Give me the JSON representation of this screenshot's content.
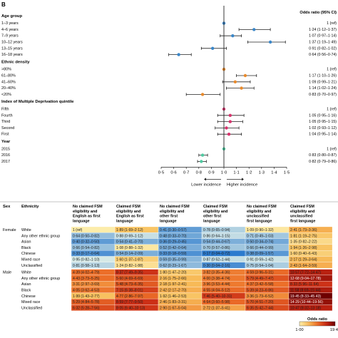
{
  "chart_data": [
    {
      "type": "scatter",
      "panel_label": "B",
      "column_header": "Odds ratio (95% CI)",
      "xlim": [
        0.5,
        1.5
      ],
      "x_ticks": [
        "0·5",
        "0·6",
        "0·7",
        "0·8",
        "0·9",
        "1·0",
        "1·1",
        "1·2",
        "1·3",
        "1·4",
        "1·5"
      ],
      "annotation_left": "Lower incidence",
      "annotation_right": "Higher incidence",
      "groups": [
        {
          "title": "Age group",
          "rows": [
            {
              "label": "1–3 years",
              "or": 1.0,
              "lo": 1.0,
              "hi": 1.0,
              "text": "1 (ref)"
            },
            {
              "label": "4–6 years",
              "or": 1.24,
              "lo": 1.12,
              "hi": 1.37,
              "text": "1·24 (1·12–1·37)"
            },
            {
              "label": "7–9 years",
              "or": 1.07,
              "lo": 0.97,
              "hi": 1.14,
              "text": "1·07 (0·97–1·14)"
            },
            {
              "label": "10–12 years",
              "or": 1.37,
              "lo": 1.19,
              "hi": 1.49,
              "text": "1·37 (1·19–1·49)"
            },
            {
              "label": "13–15 years",
              "or": 0.91,
              "lo": 0.82,
              "hi": 1.02,
              "text": "0·91 (0·82–1·02)"
            },
            {
              "label": "16–18 years",
              "or": 0.64,
              "lo": 0.56,
              "hi": 0.74,
              "text": "0·64 (0·56–0·74)"
            }
          ]
        },
        {
          "title": "Ethnic density",
          "rows": [
            {
              "label": ">80%",
              "or": 1.0,
              "lo": 1.0,
              "hi": 1.0,
              "text": "1 (ref)"
            },
            {
              "label": "61–80%",
              "or": 1.17,
              "lo": 1.1,
              "hi": 1.26,
              "text": "1·17 (1·10–1·26)"
            },
            {
              "label": "41–60%",
              "or": 1.09,
              "lo": 0.99,
              "hi": 1.21,
              "text": "1·09 (0·99–1·21)"
            },
            {
              "label": "20–40%",
              "or": 1.14,
              "lo": 1.02,
              "hi": 1.24,
              "text": "1·14 (1·02–1·24)"
            },
            {
              "label": "<20%",
              "or": 0.83,
              "lo": 0.7,
              "hi": 0.97,
              "text": "0·83 (0·70–0·97)"
            }
          ]
        },
        {
          "title": "Index of Multiple Deprivation quintile",
          "rows": [
            {
              "label": "Fifth",
              "or": 1.0,
              "lo": 1.0,
              "hi": 1.0,
              "text": "1 (ref)"
            },
            {
              "label": "Fourth",
              "or": 1.05,
              "lo": 0.95,
              "hi": 1.16,
              "text": "1·05 (0·95–1·16)"
            },
            {
              "label": "Third",
              "or": 1.05,
              "lo": 0.95,
              "hi": 1.15,
              "text": "1·05 (0·95–1·15)"
            },
            {
              "label": "Second",
              "or": 1.02,
              "lo": 0.93,
              "hi": 1.12,
              "text": "1·02 (0·93–1·12)"
            },
            {
              "label": "First",
              "or": 1.04,
              "lo": 0.95,
              "hi": 1.14,
              "text": "1·04 (0·95–1·14)"
            }
          ]
        },
        {
          "title": "Year",
          "rows": [
            {
              "label": "2015",
              "or": 1.0,
              "lo": 1.0,
              "hi": 1.0,
              "text": "1 (ref)"
            },
            {
              "label": "2016",
              "or": 0.83,
              "lo": 0.8,
              "hi": 0.87,
              "text": "0·83 (0·80–0·87)"
            },
            {
              "label": "2017",
              "or": 0.82,
              "lo": 0.79,
              "hi": 0.86,
              "text": "0·82 (0·79–0·86)"
            }
          ]
        }
      ],
      "group_colors": [
        "#3a86c8",
        "#e88a2c",
        "#d6336c",
        "#4fc9a0"
      ]
    },
    {
      "type": "heatmap",
      "row_headers": [
        "Sex",
        "Ethnicity"
      ],
      "columns": [
        "No claimed FSM eligibility and English as first language",
        "Claimed FSM eligibility and English as first language",
        "No claimed FSM eligibility and other first language",
        "Claimed FSM eligibility and other first language",
        "No claimed FSM eligibility and unclassified first language",
        "Claimed FSM eligibility and unclassified first language"
      ],
      "sexes": [
        {
          "label": "Female",
          "rows": [
            {
              "ethnicity": "White",
              "cells": [
                {
                  "v": 1.0,
                  "t": "1 (ref)"
                },
                {
                  "v": 1.89,
                  "t": "1·89 (1·69–2·12)"
                },
                {
                  "v": 0.41,
                  "t": "0·41 (0·30–0·57)"
                },
                {
                  "v": 0.78,
                  "t": "0·78 (0·65–0·94)"
                },
                {
                  "v": 1.09,
                  "t": "1·09 (0·90–1·32)"
                },
                {
                  "v": 2.41,
                  "t": "2·41 (1·73–3·36)"
                }
              ]
            },
            {
              "ethnicity": "Any other ethnic group",
              "cells": [
                {
                  "v": 0.64,
                  "t": "0·64 (0·50–0·82)"
                },
                {
                  "v": 0.88,
                  "t": "0·88 (0·69–1·12)"
                },
                {
                  "v": 0.48,
                  "t": "0·48 (0·33–0·70)"
                },
                {
                  "v": 0.86,
                  "t": "0·86 (0·64–1·15)"
                },
                {
                  "v": 0.71,
                  "t": "0·71 (0·49–1·03)"
                },
                {
                  "v": 1.81,
                  "t": "1·81 (1·19–2·75)"
                }
              ]
            },
            {
              "ethnicity": "Asian",
              "cells": [
                {
                  "v": 0.4,
                  "t": "0·40 (0·32–0·50)"
                },
                {
                  "v": 0.54,
                  "t": "0·54 (0·41–0·70)"
                },
                {
                  "v": 0.36,
                  "t": "0·36 (0·29–0·45)"
                },
                {
                  "v": 0.54,
                  "t": "0·54 (0·44–0·67)"
                },
                {
                  "v": 0.5,
                  "t": "0·50 (0·34–0·74)"
                },
                {
                  "v": 1.35,
                  "t": "1·35 (0·82–2·22)"
                }
              ]
            },
            {
              "ethnicity": "Black",
              "cells": [
                {
                  "v": 0.66,
                  "t": "0·66 (0·54–0·82)"
                },
                {
                  "v": 1.08,
                  "t": "1·08 (0·88–1·32)"
                },
                {
                  "v": 0.52,
                  "t": "0·52 (0·42–0·64)"
                },
                {
                  "v": 0.7,
                  "t": "0·70 (0·57–0·86)"
                },
                {
                  "v": 0.66,
                  "t": "0·66 (0·44–0·99)"
                },
                {
                  "v": 1.94,
                  "t": "1·94 (1·26–2·98)"
                }
              ]
            },
            {
              "ethnicity": "Chinese",
              "cells": [
                {
                  "v": 0.33,
                  "t": "0·33 (0·17–0·64)"
                },
                {
                  "v": 0.54,
                  "t": "0·54 (0·14–2·09)"
                },
                {
                  "v": 0.33,
                  "t": "0·33 (0·18–0·59)"
                },
                {
                  "v": 0.17,
                  "t": "0·17 (0·04–0·72)"
                },
                {
                  "v": 0.38,
                  "t": "0·38 (0·09–1·57)"
                },
                {
                  "v": 1.6,
                  "t": "1·60 (0·40–6·43)"
                }
              ]
            },
            {
              "ethnicity": "Mixed race",
              "cells": [
                {
                  "v": 0.95,
                  "t": "0·95 (0·82–1·10)"
                },
                {
                  "v": 1.6,
                  "t": "1·60 (1·37–1·87)"
                },
                {
                  "v": 0.59,
                  "t": "0·59 (0·35–0·99)"
                },
                {
                  "v": 0.87,
                  "t": "0·87 (0·52–1·44)"
                },
                {
                  "v": 0.91,
                  "t": "0·91 (0·59–1·42)"
                },
                {
                  "v": 2.17,
                  "t": "2·17 (1·29–3·64)"
                }
              ]
            },
            {
              "ethnicity": "Unclassified",
              "cells": [
                {
                  "v": 0.81,
                  "t": "0·81 (0·58–1·13)"
                },
                {
                  "v": 1.24,
                  "t": "1·24 (0·82–1·88)"
                },
                {
                  "v": 0.62,
                  "t": "0·62 (0·23–1·67)"
                },
                {
                  "v": 0.3,
                  "t": "0·30 (0·04–2·16)"
                },
                {
                  "v": 0.75,
                  "t": "0·75 (0·54–1·04)"
                },
                {
                  "v": 2.43,
                  "t": "2·43 (1·64–3·59)"
                }
              ]
            }
          ]
        },
        {
          "label": "Male",
          "rows": [
            {
              "ethnicity": "White",
              "cells": [
                {
                  "v": 4.39,
                  "t": "4·39 (4·02–4·79)"
                },
                {
                  "v": 8.37,
                  "t": "8·37 (7·49–9·35)"
                },
                {
                  "v": 1.8,
                  "t": "1·80 (1·47–2·20)"
                },
                {
                  "v": 3.82,
                  "t": "3·82 (3·35–4·36)"
                },
                {
                  "v": 4.59,
                  "t": "4·59 (3·96–5·31)"
                },
                {
                  "v": 10.57,
                  "t": "10·57 (7·72–14·47)"
                }
              ]
            },
            {
              "ethnicity": "Any other ethnic group",
              "cells": [
                {
                  "v": 4.43,
                  "t": "4·43 (3·73–5·25)"
                },
                {
                  "v": 5.6,
                  "t": "5·60 (4·69–6·69)"
                },
                {
                  "v": 2.16,
                  "t": "2·16 (1·75–2·66)"
                },
                {
                  "v": 4.0,
                  "t": "4·00 (3·38–4·74)"
                },
                {
                  "v": 5.79,
                  "t": "5·79 (4·49–7·47)"
                },
                {
                  "v": 12.68,
                  "t": "12·68 (9·04–17·78)"
                }
              ]
            },
            {
              "ethnicity": "Asian",
              "cells": [
                {
                  "v": 3.31,
                  "t": "3·31 (2·97–3·69)"
                },
                {
                  "v": 5.48,
                  "t": "5·48 (4·73–6·35)"
                },
                {
                  "v": 2.18,
                  "t": "2·18 (1·97–2·41)"
                },
                {
                  "v": 3.96,
                  "t": "3·96 (3·53–4·44)"
                },
                {
                  "v": 4.37,
                  "t": "4·37 (3·42–5·58)"
                },
                {
                  "v": 8.33,
                  "t": "8·33 (5·96–11·64)"
                }
              ]
            },
            {
              "ethnicity": "Black",
              "cells": [
                {
                  "v": 4.05,
                  "t": "4·05 (3·62–4·53)"
                },
                {
                  "v": 7.15,
                  "t": "7·15 (6·38–8·01)"
                },
                {
                  "v": 2.42,
                  "t": "2·42 (2·17–2·70)"
                },
                {
                  "v": 4.55,
                  "t": "4·55 (4·04–5·12)"
                },
                {
                  "v": 5.39,
                  "t": "5·39 (4·23–6·86)"
                },
                {
                  "v": 11.58,
                  "t": "11·58 (8·69–15·44)"
                }
              ]
            },
            {
              "ethnicity": "Chinese",
              "cells": [
                {
                  "v": 1.99,
                  "t": "1·99 (1·43–2·77)"
                },
                {
                  "v": 4.77,
                  "t": "4·77 (2·86–7·97)"
                },
                {
                  "v": 1.92,
                  "t": "1·92 (1·46–2·53)"
                },
                {
                  "v": 7.46,
                  "t": "7·46 (5·40–10·31)"
                },
                {
                  "v": 3.36,
                  "t": "3·36 (1·73–6·52)"
                },
                {
                  "v": 19.45,
                  "t": "19·45 (8·33–45·43)"
                }
              ]
            },
            {
              "ethnicity": "Mixed race",
              "cells": [
                {
                  "v": 5.29,
                  "t": "5·29 (4·84–5·78)"
                },
                {
                  "v": 8.59,
                  "t": "8·59 (7·77–9·50)"
                },
                {
                  "v": 2.46,
                  "t": "2·46 (1·83–3·31)"
                },
                {
                  "v": 4.64,
                  "t": "4·64 (3·60–5·98)"
                },
                {
                  "v": 5.7,
                  "t": "5·70 (4·51–7·20)"
                },
                {
                  "v": 14.29,
                  "t": "14·29 (10·44–19·56)"
                }
              ]
            },
            {
              "ethnicity": "Unclassified",
              "cells": [
                {
                  "v": 6.32,
                  "t": "6·32 (5·28–7·56)"
                },
                {
                  "v": 8.05,
                  "t": "8·05 (6·40–10·13)"
                },
                {
                  "v": 2.9,
                  "t": "2·90 (1·67–5·04)"
                },
                {
                  "v": 2.72,
                  "t": "2·72 (1·37–5·41)"
                },
                {
                  "v": 6.35,
                  "t": "6·35 (5·42–7·44)"
                },
                {
                  "v": 10.47,
                  "t": "10·47 (8·32–13·18)"
                }
              ]
            }
          ]
        }
      ],
      "legend": {
        "title": "Odds ratio",
        "min_label": "1·00",
        "max_label": "19·45",
        "min": 1.0,
        "max": 19.45
      }
    }
  ]
}
